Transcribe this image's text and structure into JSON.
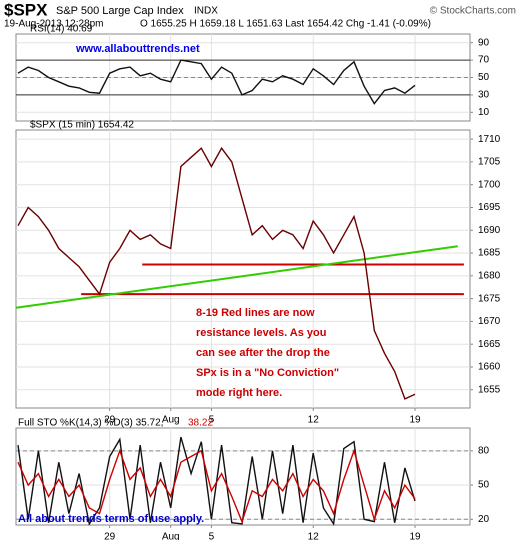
{
  "header": {
    "symbol": "$SPX",
    "name": "S&P 500 Large Cap Index",
    "exchange": "INDX",
    "watermark": "© StockCharts.com",
    "datetime": "19-Aug-2013 12:28pm",
    "quote": "O 1655.25  H 1659.18  L 1651.63  Last 1654.42  Chg -1.41 (-0.09%)"
  },
  "chart_data": [
    {
      "type": "line",
      "label": "RSI(14) 40.69",
      "site": "www.allabouttrends.net",
      "x": [
        0.5,
        1,
        1.5,
        2,
        2.5,
        3,
        3.5,
        4,
        4.5,
        5,
        5.5,
        6,
        6.5,
        7,
        7.5,
        8,
        8.5,
        9,
        9.5,
        10,
        10.5,
        11,
        11.5,
        12,
        12.5,
        13,
        13.5,
        14,
        14.5,
        15,
        15.5,
        16,
        16.5,
        17,
        17.5,
        18,
        18.5,
        19,
        19.5,
        20
      ],
      "xlim": [
        0.4,
        22.7
      ],
      "ylim": [
        0,
        100
      ],
      "yticks": [
        10,
        30,
        50,
        70,
        90
      ],
      "hlines": [
        {
          "y": 70,
          "color": "#333333",
          "dashed": false
        },
        {
          "y": 50,
          "color": "#888888",
          "dashed": true
        },
        {
          "y": 30,
          "color": "#333333",
          "dashed": false
        }
      ],
      "series": [
        {
          "color": "#111111",
          "values": [
            55,
            62,
            58,
            50,
            45,
            40,
            38,
            33,
            32,
            55,
            60,
            62,
            52,
            55,
            48,
            45,
            70,
            68,
            66,
            48,
            62,
            55,
            30,
            35,
            48,
            45,
            52,
            48,
            42,
            60,
            52,
            42,
            58,
            68,
            40,
            20,
            35,
            38,
            32,
            41
          ]
        }
      ]
    },
    {
      "type": "line",
      "label": "$SPX (15 min) 1654.42",
      "x": [
        0.5,
        1,
        1.5,
        2,
        2.5,
        3,
        3.5,
        4,
        4.5,
        5,
        5.5,
        6,
        6.5,
        7,
        7.5,
        8,
        8.5,
        9,
        9.5,
        10,
        10.5,
        11,
        11.5,
        12,
        12.5,
        13,
        13.5,
        14,
        14.5,
        15,
        15.5,
        16,
        16.5,
        17,
        17.5,
        18,
        18.5,
        19,
        19.5,
        20
      ],
      "xlim": [
        0.4,
        22.7
      ],
      "xticks": [
        {
          "value": 5,
          "label": "29"
        },
        {
          "value": 8,
          "label": "Aug"
        },
        {
          "value": 10,
          "label": "5"
        },
        {
          "value": 15,
          "label": "12"
        },
        {
          "value": 20,
          "label": "19"
        }
      ],
      "ylim": [
        1651,
        1712
      ],
      "yticks": [
        1655,
        1660,
        1665,
        1670,
        1675,
        1680,
        1685,
        1690,
        1695,
        1700,
        1705,
        1710
      ],
      "series": [
        {
          "color": "#6b0000",
          "values": [
            1691,
            1695,
            1693,
            1690,
            1686,
            1684,
            1682,
            1679,
            1676,
            1683,
            1686,
            1690,
            1688,
            1689,
            1687,
            1686,
            1704,
            1706,
            1708,
            1704,
            1708,
            1705,
            1697,
            1689,
            1691,
            1688,
            1690,
            1689,
            1686,
            1692,
            1689,
            1685,
            1689,
            1693,
            1685,
            1668,
            1663,
            1659,
            1653,
            1654
          ]
        }
      ],
      "lines": [
        {
          "color": "#cc0000",
          "x": [
            6.6,
            22.4
          ],
          "y": [
            1682.5,
            1682.5
          ]
        },
        {
          "color": "#cc0000",
          "x": [
            3.6,
            22.4
          ],
          "y": [
            1676,
            1676
          ]
        },
        {
          "color": "#33cc00",
          "x": [
            0.4,
            22.1
          ],
          "y": [
            1673,
            1686.5
          ]
        }
      ],
      "annotation": [
        "8-19 Red lines are now",
        "resistance levels. As you",
        "can see after the drop the",
        "SPx is in a \"No Conviction\"",
        "mode right here."
      ]
    },
    {
      "type": "line",
      "label_parts": [
        "Full STO %K(14,3) %D(3) 35.72,",
        "38.22"
      ],
      "footer": "All about trends terms of use apply.",
      "x": [
        0.5,
        1,
        1.5,
        2,
        2.5,
        3,
        3.5,
        4,
        4.5,
        5,
        5.5,
        6,
        6.5,
        7,
        7.5,
        8,
        8.5,
        9,
        9.5,
        10,
        10.5,
        11,
        11.5,
        12,
        12.5,
        13,
        13.5,
        14,
        14.5,
        15,
        15.5,
        16,
        16.5,
        17,
        17.5,
        18,
        18.5,
        19,
        19.5,
        20
      ],
      "xlim": [
        0.4,
        22.7
      ],
      "xticks": [
        {
          "value": 5,
          "label": "29"
        },
        {
          "value": 8,
          "label": "Aug"
        },
        {
          "value": 10,
          "label": "5"
        },
        {
          "value": 15,
          "label": "12"
        },
        {
          "value": 20,
          "label": "19"
        }
      ],
      "ylim": [
        15,
        100
      ],
      "yticks": [
        20,
        50,
        80
      ],
      "hlines": [
        {
          "y": 80,
          "color": "#888888",
          "dashed": true
        },
        {
          "y": 20,
          "color": "#888888",
          "dashed": true
        }
      ],
      "series": [
        {
          "color": "#111111",
          "values": [
            85,
            20,
            80,
            17,
            70,
            25,
            60,
            16,
            30,
            75,
            90,
            20,
            85,
            17,
            70,
            30,
            92,
            60,
            88,
            20,
            85,
            17,
            16,
            75,
            20,
            80,
            25,
            85,
            17,
            78,
            30,
            16,
            82,
            88,
            20,
            18,
            70,
            17,
            65,
            36
          ]
        },
        {
          "color": "#cc0000",
          "values": [
            70,
            50,
            60,
            40,
            55,
            40,
            50,
            30,
            25,
            55,
            80,
            55,
            65,
            40,
            55,
            40,
            70,
            75,
            80,
            45,
            60,
            40,
            18,
            45,
            40,
            55,
            45,
            60,
            40,
            55,
            45,
            25,
            55,
            80,
            50,
            20,
            45,
            30,
            50,
            38
          ]
        }
      ]
    }
  ]
}
